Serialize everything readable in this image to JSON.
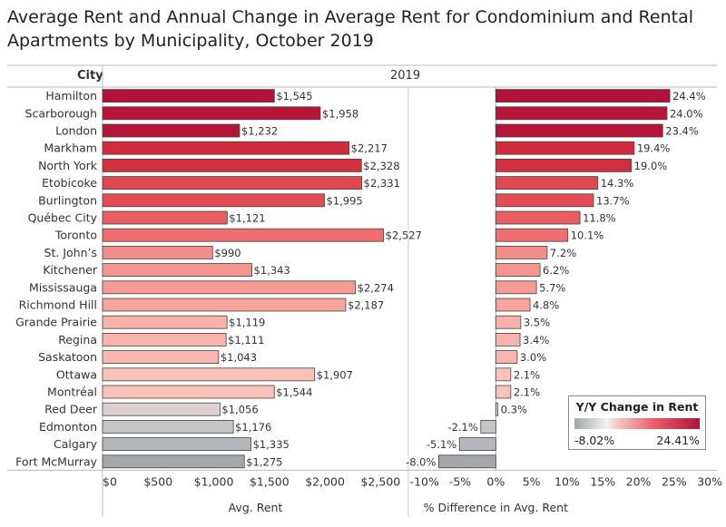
{
  "title_lines": [
    "Average Rent and Annual Change in Average Rent for Condominium and Rental",
    "Apartments by Municipality, October 2019"
  ],
  "headers": {
    "city": "City",
    "year": "2019"
  },
  "chart_data": {
    "type": "bar",
    "categories": [
      "Hamilton",
      "Scarborough",
      "London",
      "Markham",
      "North York",
      "Etobicoke",
      "Burlington",
      "Québec City",
      "Toronto",
      "St. John’s",
      "Kitchener",
      "Mississauga",
      "Richmond Hill",
      "Grande Prairie",
      "Regina",
      "Saskatoon",
      "Ottawa",
      "Montréal",
      "Red Deer",
      "Edmonton",
      "Calgary",
      "Fort McMurray"
    ],
    "rent": {
      "values": [
        1545,
        1958,
        1232,
        2217,
        2328,
        2331,
        1995,
        1121,
        2527,
        990,
        1343,
        2274,
        2187,
        1119,
        1111,
        1043,
        1907,
        1544,
        1056,
        1176,
        1335,
        1275
      ],
      "labels": [
        "$1,545",
        "$1,958",
        "$1,232",
        "$2,217",
        "$2,328",
        "$2,331",
        "$1,995",
        "$1,121",
        "$2,527",
        "$990",
        "$1,343",
        "$2,274",
        "$2,187",
        "$1,119",
        "$1,111",
        "$1,043",
        "$1,907",
        "$1,544",
        "$1,056",
        "$1,176",
        "$1,335",
        "$1,275"
      ],
      "xlabel": "Avg. Rent",
      "xlim": [
        0,
        2750
      ],
      "ticks": [
        0,
        500,
        1000,
        1500,
        2000,
        2500
      ],
      "tick_labels": [
        "$0",
        "$500",
        "$1,000",
        "$1,500",
        "$2,000",
        "$2,500"
      ]
    },
    "change": {
      "values": [
        24.4,
        24.0,
        23.4,
        19.4,
        19.0,
        14.3,
        13.7,
        11.8,
        10.1,
        7.2,
        6.2,
        5.7,
        4.8,
        3.5,
        3.4,
        3.0,
        2.1,
        2.1,
        0.3,
        -2.1,
        -5.1,
        -8.0
      ],
      "labels": [
        "24.4%",
        "24.0%",
        "23.4%",
        "19.4%",
        "19.0%",
        "14.3%",
        "13.7%",
        "11.8%",
        "10.1%",
        "7.2%",
        "6.2%",
        "5.7%",
        "4.8%",
        "3.5%",
        "3.4%",
        "3.0%",
        "2.1%",
        "2.1%",
        "0.3%",
        "-2.1%",
        "-5.1%",
        "-8.0%"
      ],
      "xlabel": "% Difference in Avg. Rent",
      "xlim": [
        -12,
        31
      ],
      "ticks": [
        -10,
        -5,
        0,
        5,
        10,
        15,
        20,
        25,
        30
      ],
      "tick_labels": [
        "-10%",
        "-5%",
        "0%",
        "5%",
        "10%",
        "15%",
        "20%",
        "25%",
        "30%"
      ]
    },
    "legend": {
      "title": "Y/Y Change in Rent",
      "min_label": "-8.02%",
      "max_label": "24.41%"
    },
    "colors": [
      "#b0123a",
      "#b81438",
      "#b51539",
      "#d02c3e",
      "#d1303f",
      "#e24850",
      "#e44c53",
      "#e95c60",
      "#ee6d6e",
      "#f38d8a",
      "#f5948f",
      "#f59a94",
      "#f7a49d",
      "#f8b2aa",
      "#f8b3ab",
      "#f8b7ae",
      "#fbc2ba",
      "#fbc2ba",
      "#ddd0d0",
      "#c3c5c6",
      "#b5b8ba",
      "#a3a7aa"
    ]
  }
}
